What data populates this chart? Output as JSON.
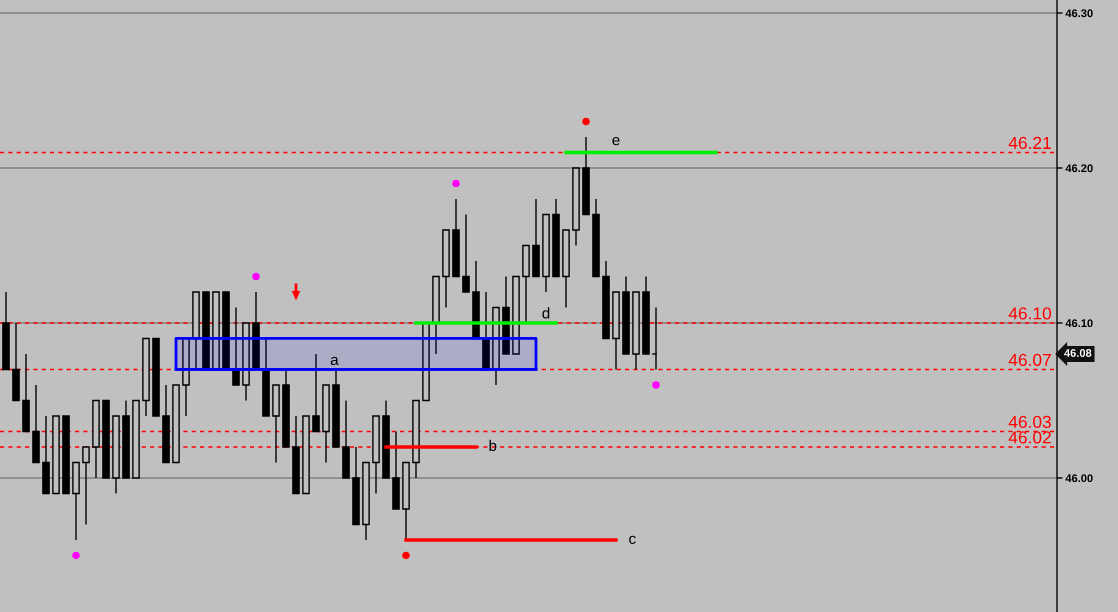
{
  "chart_data": {
    "type": "candlestick",
    "categories": [
      null,
      null,
      null,
      null,
      null,
      null,
      null,
      null,
      null,
      null,
      null,
      null,
      null,
      null,
      null,
      null,
      null,
      null,
      null,
      null,
      null,
      null,
      null,
      null,
      null,
      null,
      null,
      null,
      null,
      null,
      null,
      null,
      null,
      null,
      null,
      null,
      null,
      null,
      null,
      null,
      null,
      null,
      null,
      null,
      null,
      null,
      null,
      null,
      null,
      null,
      null,
      null,
      null,
      null,
      null,
      null,
      null,
      null,
      null,
      null,
      null,
      null,
      null,
      null,
      null,
      null,
      null,
      null,
      null,
      null,
      null,
      null,
      null,
      null,
      null,
      null,
      null,
      null,
      null,
      null,
      null,
      null,
      null,
      null,
      null,
      null,
      null,
      null,
      null,
      null,
      null,
      null,
      null,
      null,
      null,
      null,
      null,
      null,
      null,
      null,
      null,
      null,
      null,
      null,
      null,
      null
    ],
    "ohlc": [
      [
        46.1,
        46.12,
        46.07,
        46.07
      ],
      [
        46.07,
        46.1,
        46.05,
        46.05
      ],
      [
        46.05,
        46.08,
        46.03,
        46.03
      ],
      [
        46.03,
        46.06,
        46.01,
        46.01
      ],
      [
        46.01,
        46.04,
        45.99,
        45.99
      ],
      [
        45.99,
        46.04,
        45.99,
        46.04
      ],
      [
        46.04,
        46.04,
        45.99,
        45.99
      ],
      [
        45.99,
        46.01,
        45.96,
        46.01
      ],
      [
        46.01,
        46.02,
        45.97,
        46.02
      ],
      [
        46.02,
        46.05,
        46.0,
        46.05
      ],
      [
        46.05,
        46.05,
        46.0,
        46.0
      ],
      [
        46.0,
        46.04,
        45.99,
        46.04
      ],
      [
        46.04,
        46.05,
        46.0,
        46.0
      ],
      [
        46.0,
        46.05,
        46.0,
        46.05
      ],
      [
        46.05,
        46.09,
        46.04,
        46.09
      ],
      [
        46.09,
        46.09,
        46.04,
        46.04
      ],
      [
        46.04,
        46.06,
        46.01,
        46.01
      ],
      [
        46.01,
        46.06,
        46.01,
        46.06
      ],
      [
        46.06,
        46.09,
        46.04,
        46.09
      ],
      [
        46.09,
        46.12,
        46.07,
        46.12
      ],
      [
        46.12,
        46.12,
        46.07,
        46.07
      ],
      [
        46.07,
        46.12,
        46.07,
        46.12
      ],
      [
        46.12,
        46.12,
        46.07,
        46.07
      ],
      [
        46.07,
        46.11,
        46.06,
        46.06
      ],
      [
        46.06,
        46.1,
        46.05,
        46.1
      ],
      [
        46.1,
        46.12,
        46.07,
        46.07
      ],
      [
        46.07,
        46.09,
        46.04,
        46.04
      ],
      [
        46.04,
        46.06,
        46.01,
        46.06
      ],
      [
        46.06,
        46.07,
        46.02,
        46.02
      ],
      [
        46.02,
        46.04,
        45.99,
        45.99
      ],
      [
        45.99,
        46.04,
        45.99,
        46.04
      ],
      [
        46.04,
        46.08,
        46.03,
        46.03
      ],
      [
        46.03,
        46.06,
        46.01,
        46.06
      ],
      [
        46.06,
        46.07,
        46.02,
        46.02
      ],
      [
        46.02,
        46.05,
        46.0,
        46.0
      ],
      [
        46.0,
        46.02,
        45.97,
        45.97
      ],
      [
        45.97,
        46.01,
        45.96,
        46.01
      ],
      [
        46.01,
        46.04,
        45.99,
        46.04
      ],
      [
        46.04,
        46.05,
        46.0,
        46.0
      ],
      [
        46.0,
        46.03,
        45.98,
        45.98
      ],
      [
        45.98,
        46.01,
        45.96,
        46.01
      ],
      [
        46.01,
        46.05,
        46.0,
        46.05
      ],
      [
        46.05,
        46.1,
        46.05,
        46.1
      ],
      [
        46.1,
        46.13,
        46.08,
        46.13
      ],
      [
        46.13,
        46.16,
        46.11,
        46.16
      ],
      [
        46.16,
        46.18,
        46.13,
        46.13
      ],
      [
        46.13,
        46.17,
        46.12,
        46.12
      ],
      [
        46.12,
        46.14,
        46.09,
        46.09
      ],
      [
        46.09,
        46.12,
        46.07,
        46.07
      ],
      [
        46.07,
        46.11,
        46.06,
        46.11
      ],
      [
        46.11,
        46.13,
        46.08,
        46.08
      ],
      [
        46.08,
        46.13,
        46.08,
        46.13
      ],
      [
        46.13,
        46.15,
        46.1,
        46.15
      ],
      [
        46.15,
        46.18,
        46.13,
        46.13
      ],
      [
        46.13,
        46.17,
        46.12,
        46.17
      ],
      [
        46.17,
        46.18,
        46.13,
        46.13
      ],
      [
        46.13,
        46.16,
        46.11,
        46.16
      ],
      [
        46.16,
        46.2,
        46.15,
        46.2
      ],
      [
        46.2,
        46.22,
        46.17,
        46.17
      ],
      [
        46.17,
        46.18,
        46.13,
        46.13
      ],
      [
        46.13,
        46.14,
        46.09,
        46.09
      ],
      [
        46.09,
        46.12,
        46.07,
        46.12
      ],
      [
        46.12,
        46.13,
        46.08,
        46.08
      ],
      [
        46.08,
        46.12,
        46.07,
        46.12
      ],
      [
        46.12,
        46.13,
        46.08,
        46.08
      ],
      [
        46.08,
        46.11,
        46.07,
        46.08
      ],
      null,
      null,
      null,
      null,
      null,
      null,
      null,
      null,
      null,
      null,
      null,
      null,
      null,
      null,
      null,
      null,
      null,
      null,
      null,
      null,
      null,
      null,
      null,
      null,
      null,
      null,
      null,
      null,
      null,
      null,
      null,
      null,
      null,
      null,
      null,
      null,
      null,
      null,
      null,
      null
    ],
    "series": [
      {
        "type": "line",
        "name": "a",
        "color": "#0000ff",
        "values": [
          null,
          null,
          null,
          null,
          null,
          null,
          null,
          null,
          null,
          null,
          null,
          null,
          null,
          null,
          null,
          null,
          null,
          46.07,
          46.07,
          46.07,
          46.07,
          46.07,
          46.07,
          46.07,
          46.07,
          46.07,
          46.07,
          46.07,
          46.07,
          46.07,
          46.07,
          46.07,
          46.07,
          46.07,
          46.07,
          46.07,
          46.07,
          46.07,
          46.07,
          46.07,
          46.07,
          46.07,
          46.07,
          46.07,
          46.07,
          46.07,
          46.07,
          46.07,
          46.07,
          46.07,
          46.07,
          46.07,
          46.07,
          46.07,
          null,
          null,
          null,
          null,
          null,
          null,
          null,
          null,
          null,
          null,
          null,
          null,
          null,
          null,
          null,
          null,
          null,
          null,
          null,
          null,
          null,
          null,
          null,
          null,
          null,
          null,
          null,
          null,
          null,
          null,
          null,
          null,
          null,
          null,
          null,
          null,
          null,
          null,
          null,
          null,
          null,
          null,
          null,
          null,
          null,
          null,
          null,
          null,
          null,
          null,
          null,
          null
        ],
        "lower": [
          null,
          null,
          null,
          null,
          null,
          null,
          null,
          null,
          null,
          null,
          null,
          null,
          null,
          null,
          null,
          null,
          null,
          46.07,
          46.07,
          46.07,
          46.07,
          46.07,
          46.07,
          46.07,
          46.07,
          46.07,
          46.07,
          46.07,
          46.07,
          46.07,
          46.07,
          46.07,
          46.07,
          46.07,
          46.07,
          46.07,
          46.07,
          46.07,
          46.07,
          46.07,
          46.07,
          46.07,
          46.07,
          46.07,
          46.07,
          46.07,
          46.07,
          46.07,
          46.07,
          46.07,
          46.07,
          46.07,
          46.07,
          46.07,
          null,
          null,
          null,
          null,
          null,
          null,
          null,
          null,
          null,
          null,
          null,
          null,
          null,
          null,
          null,
          null,
          null,
          null,
          null,
          null,
          null,
          null,
          null,
          null,
          null,
          null,
          null,
          null,
          null,
          null,
          null,
          null,
          null,
          null,
          null,
          null,
          null,
          null,
          null,
          null,
          null,
          null,
          null,
          null,
          null,
          null,
          null,
          null,
          null,
          null,
          null,
          null
        ],
        "upper": [
          null,
          null,
          null,
          null,
          null,
          null,
          null,
          null,
          null,
          null,
          null,
          null,
          null,
          null,
          null,
          null,
          null,
          46.09,
          46.09,
          46.09,
          46.09,
          46.09,
          46.09,
          46.09,
          46.09,
          46.09,
          46.09,
          46.09,
          46.09,
          46.09,
          46.09,
          46.09,
          46.09,
          46.09,
          46.09,
          46.09,
          46.09,
          46.09,
          46.09,
          46.09,
          46.09,
          46.09,
          46.09,
          46.09,
          46.09,
          46.09,
          46.09,
          46.09,
          46.09,
          46.09,
          46.09,
          46.09,
          46.09,
          46.09,
          null,
          null,
          null,
          null,
          null,
          null,
          null,
          null,
          null,
          null,
          null,
          null,
          null,
          null,
          null,
          null,
          null,
          null,
          null,
          null,
          null,
          null,
          null,
          null,
          null,
          null,
          null,
          null,
          null,
          null,
          null,
          null,
          null,
          null,
          null,
          null,
          null,
          null,
          null,
          null,
          null,
          null,
          null,
          null,
          null,
          null,
          null,
          null,
          null,
          null,
          null,
          null
        ]
      },
      {
        "type": "line",
        "name": "b",
        "color": "#ff0000",
        "values": [
          null,
          null,
          null,
          null,
          null,
          null,
          null,
          null,
          null,
          null,
          null,
          null,
          null,
          null,
          null,
          null,
          null,
          null,
          null,
          null,
          null,
          null,
          null,
          null,
          null,
          null,
          null,
          null,
          null,
          null,
          null,
          null,
          null,
          null,
          null,
          null,
          null,
          null,
          46.02,
          46.02,
          46.02,
          46.02,
          46.02,
          46.02,
          46.02,
          46.02,
          46.02,
          46.02,
          null,
          null,
          null,
          null,
          null,
          null,
          null,
          null,
          null,
          null,
          null,
          null,
          null,
          null,
          null,
          null,
          null,
          null,
          null,
          null,
          null,
          null,
          null,
          null,
          null,
          null,
          null,
          null,
          null,
          null,
          null,
          null,
          null,
          null,
          null,
          null,
          null,
          null,
          null,
          null,
          null,
          null,
          null,
          null,
          null,
          null,
          null,
          null,
          null,
          null,
          null,
          null,
          null,
          null,
          null,
          null,
          null,
          null
        ]
      },
      {
        "type": "line",
        "name": "c",
        "color": "#ff0000",
        "values": [
          null,
          null,
          null,
          null,
          null,
          null,
          null,
          null,
          null,
          null,
          null,
          null,
          null,
          null,
          null,
          null,
          null,
          null,
          null,
          null,
          null,
          null,
          null,
          null,
          null,
          null,
          null,
          null,
          null,
          null,
          null,
          null,
          null,
          null,
          null,
          null,
          null,
          null,
          null,
          null,
          45.96,
          45.96,
          45.96,
          45.96,
          45.96,
          45.96,
          45.96,
          45.96,
          45.96,
          45.96,
          45.96,
          45.96,
          45.96,
          45.96,
          45.96,
          45.96,
          45.96,
          45.96,
          45.96,
          45.96,
          45.96,
          45.96,
          null,
          null,
          null,
          null,
          null,
          null,
          null,
          null,
          null,
          null,
          null,
          null,
          null,
          null,
          null,
          null,
          null,
          null,
          null,
          null,
          null,
          null,
          null,
          null,
          null,
          null,
          null,
          null,
          null,
          null,
          null,
          null,
          null,
          null,
          null,
          null,
          null,
          null,
          null,
          null,
          null,
          null,
          null,
          null
        ]
      },
      {
        "type": "line",
        "name": "d",
        "color": "#00ee00",
        "values": [
          null,
          null,
          null,
          null,
          null,
          null,
          null,
          null,
          null,
          null,
          null,
          null,
          null,
          null,
          null,
          null,
          null,
          null,
          null,
          null,
          null,
          null,
          null,
          null,
          null,
          null,
          null,
          null,
          null,
          null,
          null,
          null,
          null,
          null,
          null,
          null,
          null,
          null,
          null,
          null,
          null,
          46.1,
          46.1,
          46.1,
          46.1,
          46.1,
          46.1,
          46.1,
          46.1,
          46.1,
          46.1,
          46.1,
          46.1,
          46.1,
          46.1,
          46.1,
          null,
          null,
          null,
          null,
          null,
          null,
          null,
          null,
          null,
          null,
          null,
          null,
          null,
          null,
          null,
          null,
          null,
          null,
          null,
          null,
          null,
          null,
          null,
          null,
          null,
          null,
          null,
          null,
          null,
          null,
          null,
          null,
          null,
          null,
          null,
          null,
          null,
          null,
          null,
          null,
          null,
          null,
          null,
          null,
          null,
          null,
          null,
          null,
          null,
          null
        ]
      },
      {
        "type": "line",
        "name": "e",
        "color": "#00ee00",
        "values": [
          null,
          null,
          null,
          null,
          null,
          null,
          null,
          null,
          null,
          null,
          null,
          null,
          null,
          null,
          null,
          null,
          null,
          null,
          null,
          null,
          null,
          null,
          null,
          null,
          null,
          null,
          null,
          null,
          null,
          null,
          null,
          null,
          null,
          null,
          null,
          null,
          null,
          null,
          null,
          null,
          null,
          null,
          null,
          null,
          null,
          null,
          null,
          null,
          null,
          null,
          null,
          null,
          null,
          null,
          null,
          null,
          46.21,
          46.21,
          46.21,
          46.21,
          46.21,
          46.21,
          46.21,
          46.21,
          46.21,
          46.21,
          46.21,
          46.21,
          46.21,
          46.21,
          46.21,
          46.21,
          null,
          null,
          null,
          null,
          null,
          null,
          null,
          null,
          null,
          null,
          null,
          null,
          null,
          null,
          null,
          null,
          null,
          null,
          null,
          null,
          null,
          null,
          null,
          null,
          null,
          null,
          null,
          null,
          null,
          null,
          null,
          null,
          null,
          null
        ]
      },
      {
        "type": "scatter",
        "color": "#ff00ff",
        "marker": "circle",
        "values": [
          null,
          null,
          null,
          null,
          null,
          null,
          null,
          45.95,
          null,
          null,
          null,
          null,
          null,
          null,
          null,
          null,
          null,
          null,
          null,
          null,
          null,
          null,
          null,
          null,
          null,
          46.13,
          null,
          null,
          null,
          null,
          null,
          null,
          null,
          null,
          null,
          null,
          null,
          null,
          null,
          null,
          null,
          null,
          null,
          null,
          null,
          46.19,
          null,
          null,
          null,
          null,
          null,
          null,
          null,
          null,
          null,
          null,
          null,
          null,
          null,
          null,
          null,
          null,
          null,
          null,
          null,
          46.06,
          null,
          null,
          null,
          null,
          null,
          null,
          null,
          null,
          null,
          null,
          null,
          null,
          null,
          null,
          null,
          null,
          null,
          null,
          null,
          null,
          null,
          null,
          null,
          null,
          null,
          null,
          null,
          null,
          null,
          null,
          null,
          null,
          null,
          null,
          null,
          null,
          null,
          null,
          null,
          null
        ]
      },
      {
        "type": "scatter",
        "color": "#ff0000",
        "marker": "circle",
        "values": [
          null,
          null,
          null,
          null,
          null,
          null,
          null,
          null,
          null,
          null,
          null,
          null,
          null,
          null,
          null,
          null,
          null,
          null,
          null,
          null,
          null,
          null,
          null,
          null,
          null,
          null,
          null,
          null,
          null,
          null,
          null,
          null,
          null,
          null,
          null,
          null,
          null,
          null,
          null,
          null,
          45.95,
          null,
          null,
          null,
          null,
          null,
          null,
          null,
          null,
          null,
          null,
          null,
          null,
          null,
          null,
          null,
          null,
          null,
          46.23,
          null,
          null,
          null,
          null,
          null,
          null,
          null,
          null,
          null,
          null,
          null,
          null,
          null,
          null,
          null,
          null,
          null,
          null,
          null,
          null,
          null,
          null,
          null,
          null,
          null,
          null,
          null,
          null,
          null,
          null,
          null,
          null,
          null,
          null,
          null,
          null,
          null,
          null,
          null,
          null,
          null,
          null,
          null,
          null,
          null,
          null,
          null
        ]
      },
      {
        "type": "scatter",
        "color": "#ff0000",
        "values": [
          null,
          null,
          null,
          null,
          null,
          null,
          null,
          null,
          null,
          null,
          null,
          null,
          null,
          null,
          null,
          null,
          null,
          null,
          null,
          null,
          null,
          null,
          null,
          null,
          null,
          null,
          null,
          null,
          null,
          46.12,
          null,
          null,
          null,
          null,
          null,
          null,
          null,
          null,
          null,
          null,
          null,
          null,
          null,
          null,
          null,
          null,
          null,
          null,
          null,
          null,
          null,
          null,
          null,
          null,
          null,
          null,
          null,
          null,
          null,
          null,
          null,
          null,
          null,
          null,
          null,
          null,
          null,
          null,
          null,
          null,
          null,
          null,
          null,
          null,
          null,
          null,
          null,
          null,
          null,
          null,
          null,
          null,
          null,
          null,
          null,
          null,
          null,
          null,
          null,
          null,
          null,
          null,
          null,
          null,
          null,
          null,
          null,
          null,
          null,
          null,
          null,
          null,
          null,
          null,
          null,
          null
        ]
      }
    ],
    "ylim": [
      45.9135,
      46.3084
    ],
    "yticks": [
      {
        "value": 46.0,
        "label": "46.00"
      },
      {
        "value": 46.1,
        "label": "46.10"
      },
      {
        "value": 46.2,
        "label": "46.20"
      },
      {
        "value": 46.3,
        "label": "46.30"
      }
    ],
    "grid": "y",
    "tick_labels": "y",
    "ref_lines": [
      {
        "axis": "y",
        "value": 46.21,
        "label": "46.21",
        "color": "#ff0000",
        "line_style": "dashed"
      },
      {
        "axis": "y",
        "value": 46.1,
        "label": "46.10",
        "color": "#ff0000",
        "line_style": "dashed"
      },
      {
        "axis": "y",
        "value": 46.07,
        "label": "46.07",
        "color": "#ff0000",
        "line_style": "dashed"
      },
      {
        "axis": "y",
        "value": 46.03,
        "label": "46.03",
        "color": "#ff0000",
        "line_style": "dashed"
      },
      {
        "axis": "y",
        "value": 46.02,
        "label": "46.02",
        "color": "#ff0000",
        "line_style": "dashed"
      }
    ],
    "annotations": [
      "46.08"
    ]
  }
}
